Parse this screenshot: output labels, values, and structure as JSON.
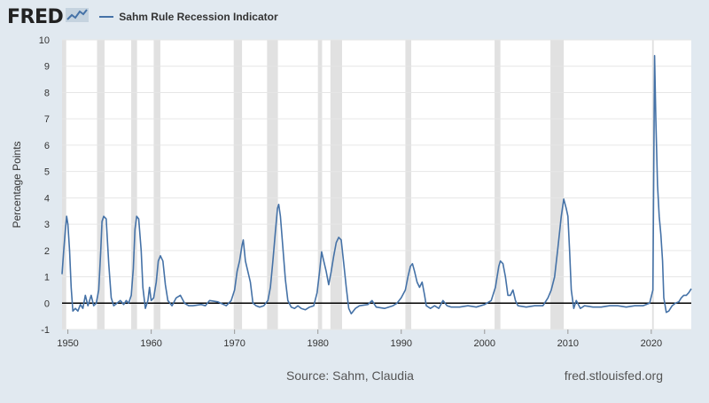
{
  "header": {
    "logo_text": "FRED",
    "logo_icon": "fred-sparkline-icon"
  },
  "footer": {
    "source": "Source: Sahm, Claudia",
    "site": "fred.stlouisfed.org"
  },
  "colors": {
    "background": "#e1e9f0",
    "plot_bg": "#ffffff",
    "series": "#4572a7",
    "recession": "#e1e1e1",
    "zero_line": "#000000"
  },
  "chart_data": {
    "type": "line",
    "title": "",
    "ylabel": "Percentage Points",
    "xlabel": "",
    "xlim": [
      1949.3,
      2024.8
    ],
    "ylim": [
      -1,
      10
    ],
    "yticks": [
      -1,
      0,
      1,
      2,
      3,
      4,
      5,
      6,
      7,
      8,
      9,
      10
    ],
    "xticks": [
      1950,
      1960,
      1970,
      1980,
      1990,
      2000,
      2010,
      2020
    ],
    "grid": true,
    "legend_position": "top-left",
    "recessions": [
      [
        1949.0,
        1949.8
      ],
      [
        1953.5,
        1954.4
      ],
      [
        1957.6,
        1958.3
      ],
      [
        1960.3,
        1961.1
      ],
      [
        1969.9,
        1970.9
      ],
      [
        1973.9,
        1975.2
      ],
      [
        1980.0,
        1980.5
      ],
      [
        1981.5,
        1982.9
      ],
      [
        1990.5,
        1991.2
      ],
      [
        2001.2,
        2001.9
      ],
      [
        2007.9,
        2009.5
      ],
      [
        2020.1,
        2020.3
      ]
    ],
    "series": [
      {
        "name": "Sahm Rule Recession Indicator",
        "points": [
          [
            1949.3,
            1.1
          ],
          [
            1949.5,
            2.0
          ],
          [
            1949.7,
            2.8
          ],
          [
            1949.85,
            3.3
          ],
          [
            1950.0,
            3.0
          ],
          [
            1950.2,
            2.0
          ],
          [
            1950.4,
            0.6
          ],
          [
            1950.6,
            -0.3
          ],
          [
            1950.9,
            -0.2
          ],
          [
            1951.2,
            -0.3
          ],
          [
            1951.5,
            -0.05
          ],
          [
            1951.8,
            -0.2
          ],
          [
            1952.1,
            0.3
          ],
          [
            1952.4,
            -0.1
          ],
          [
            1952.8,
            0.3
          ],
          [
            1953.1,
            -0.1
          ],
          [
            1953.4,
            0.0
          ],
          [
            1953.7,
            0.5
          ],
          [
            1953.95,
            2.0
          ],
          [
            1954.1,
            3.1
          ],
          [
            1954.3,
            3.3
          ],
          [
            1954.6,
            3.2
          ],
          [
            1954.9,
            1.5
          ],
          [
            1955.2,
            0.2
          ],
          [
            1955.5,
            -0.1
          ],
          [
            1955.9,
            0.0
          ],
          [
            1956.3,
            0.1
          ],
          [
            1956.7,
            -0.05
          ],
          [
            1957.0,
            0.1
          ],
          [
            1957.3,
            0.0
          ],
          [
            1957.6,
            0.3
          ],
          [
            1957.85,
            1.3
          ],
          [
            1958.05,
            2.8
          ],
          [
            1958.25,
            3.3
          ],
          [
            1958.5,
            3.2
          ],
          [
            1958.8,
            2.0
          ],
          [
            1959.0,
            0.6
          ],
          [
            1959.3,
            -0.2
          ],
          [
            1959.6,
            0.1
          ],
          [
            1959.8,
            0.6
          ],
          [
            1960.0,
            0.1
          ],
          [
            1960.3,
            0.2
          ],
          [
            1960.6,
            0.8
          ],
          [
            1960.85,
            1.6
          ],
          [
            1961.1,
            1.8
          ],
          [
            1961.4,
            1.6
          ],
          [
            1961.7,
            0.7
          ],
          [
            1962.0,
            0.1
          ],
          [
            1962.5,
            -0.1
          ],
          [
            1963.0,
            0.2
          ],
          [
            1963.5,
            0.3
          ],
          [
            1964.0,
            0.0
          ],
          [
            1964.5,
            -0.1
          ],
          [
            1965.0,
            -0.1
          ],
          [
            1966.0,
            -0.05
          ],
          [
            1966.5,
            -0.1
          ],
          [
            1967.0,
            0.1
          ],
          [
            1968.0,
            0.05
          ],
          [
            1969.0,
            -0.1
          ],
          [
            1969.6,
            0.1
          ],
          [
            1970.0,
            0.5
          ],
          [
            1970.3,
            1.2
          ],
          [
            1970.6,
            1.6
          ],
          [
            1970.9,
            2.2
          ],
          [
            1971.05,
            2.4
          ],
          [
            1971.3,
            1.6
          ],
          [
            1971.6,
            1.2
          ],
          [
            1971.9,
            0.8
          ],
          [
            1972.2,
            0.0
          ],
          [
            1972.6,
            -0.1
          ],
          [
            1973.0,
            -0.15
          ],
          [
            1973.5,
            -0.1
          ],
          [
            1974.0,
            0.1
          ],
          [
            1974.3,
            0.6
          ],
          [
            1974.6,
            1.6
          ],
          [
            1974.9,
            2.7
          ],
          [
            1975.15,
            3.6
          ],
          [
            1975.3,
            3.75
          ],
          [
            1975.5,
            3.3
          ],
          [
            1975.8,
            2.1
          ],
          [
            1976.1,
            0.9
          ],
          [
            1976.4,
            0.1
          ],
          [
            1976.8,
            -0.15
          ],
          [
            1977.2,
            -0.2
          ],
          [
            1977.6,
            -0.1
          ],
          [
            1978.0,
            -0.2
          ],
          [
            1978.5,
            -0.25
          ],
          [
            1979.0,
            -0.15
          ],
          [
            1979.5,
            -0.1
          ],
          [
            1979.9,
            0.4
          ],
          [
            1980.2,
            1.2
          ],
          [
            1980.45,
            1.95
          ],
          [
            1980.7,
            1.6
          ],
          [
            1981.0,
            1.2
          ],
          [
            1981.3,
            0.7
          ],
          [
            1981.6,
            1.2
          ],
          [
            1981.9,
            1.8
          ],
          [
            1982.2,
            2.3
          ],
          [
            1982.5,
            2.5
          ],
          [
            1982.8,
            2.4
          ],
          [
            1983.1,
            1.5
          ],
          [
            1983.4,
            0.6
          ],
          [
            1983.7,
            -0.2
          ],
          [
            1984.0,
            -0.4
          ],
          [
            1984.5,
            -0.2
          ],
          [
            1985.0,
            -0.1
          ],
          [
            1986.0,
            -0.05
          ],
          [
            1986.5,
            0.1
          ],
          [
            1987.0,
            -0.15
          ],
          [
            1988.0,
            -0.2
          ],
          [
            1989.0,
            -0.1
          ],
          [
            1989.5,
            0.0
          ],
          [
            1990.0,
            0.2
          ],
          [
            1990.5,
            0.5
          ],
          [
            1990.8,
            1.0
          ],
          [
            1991.1,
            1.4
          ],
          [
            1991.35,
            1.5
          ],
          [
            1991.6,
            1.2
          ],
          [
            1991.9,
            0.8
          ],
          [
            1992.2,
            0.6
          ],
          [
            1992.5,
            0.8
          ],
          [
            1992.8,
            0.3
          ],
          [
            1993.0,
            -0.1
          ],
          [
            1993.5,
            -0.2
          ],
          [
            1994.0,
            -0.1
          ],
          [
            1994.5,
            -0.2
          ],
          [
            1995.0,
            0.1
          ],
          [
            1995.5,
            -0.1
          ],
          [
            1996.0,
            -0.15
          ],
          [
            1997.0,
            -0.15
          ],
          [
            1998.0,
            -0.1
          ],
          [
            1999.0,
            -0.15
          ],
          [
            2000.0,
            -0.05
          ],
          [
            2000.8,
            0.1
          ],
          [
            2001.3,
            0.6
          ],
          [
            2001.7,
            1.4
          ],
          [
            2001.9,
            1.6
          ],
          [
            2002.2,
            1.5
          ],
          [
            2002.5,
            1.0
          ],
          [
            2002.8,
            0.3
          ],
          [
            2003.1,
            0.3
          ],
          [
            2003.4,
            0.5
          ],
          [
            2003.7,
            0.1
          ],
          [
            2004.0,
            -0.1
          ],
          [
            2005.0,
            -0.15
          ],
          [
            2006.0,
            -0.1
          ],
          [
            2007.0,
            -0.1
          ],
          [
            2007.6,
            0.2
          ],
          [
            2008.0,
            0.5
          ],
          [
            2008.4,
            1.0
          ],
          [
            2008.8,
            2.1
          ],
          [
            2009.2,
            3.3
          ],
          [
            2009.5,
            3.95
          ],
          [
            2009.8,
            3.6
          ],
          [
            2010.0,
            3.3
          ],
          [
            2010.2,
            2.0
          ],
          [
            2010.4,
            0.5
          ],
          [
            2010.7,
            -0.2
          ],
          [
            2011.0,
            0.1
          ],
          [
            2011.5,
            -0.2
          ],
          [
            2012.0,
            -0.1
          ],
          [
            2013.0,
            -0.15
          ],
          [
            2014.0,
            -0.15
          ],
          [
            2015.0,
            -0.1
          ],
          [
            2016.0,
            -0.1
          ],
          [
            2017.0,
            -0.15
          ],
          [
            2018.0,
            -0.1
          ],
          [
            2019.0,
            -0.1
          ],
          [
            2019.8,
            0.0
          ],
          [
            2020.2,
            0.5
          ],
          [
            2020.4,
            9.4
          ],
          [
            2020.55,
            7.0
          ],
          [
            2020.75,
            4.5
          ],
          [
            2020.95,
            3.3
          ],
          [
            2021.15,
            2.6
          ],
          [
            2021.35,
            1.6
          ],
          [
            2021.5,
            0.2
          ],
          [
            2021.8,
            -0.35
          ],
          [
            2022.1,
            -0.3
          ],
          [
            2022.5,
            -0.1
          ],
          [
            2022.9,
            0.0
          ],
          [
            2023.3,
            0.05
          ],
          [
            2023.6,
            0.2
          ],
          [
            2023.9,
            0.3
          ],
          [
            2024.2,
            0.3
          ],
          [
            2024.5,
            0.4
          ],
          [
            2024.8,
            0.55
          ]
        ]
      }
    ]
  }
}
